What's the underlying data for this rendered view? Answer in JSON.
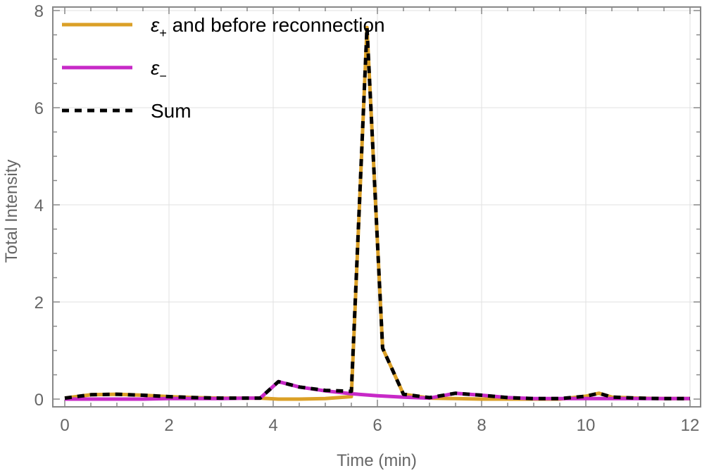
{
  "chart_data": {
    "type": "line",
    "title": "",
    "xlabel": "Time (min)",
    "ylabel": "Total Intensity",
    "xlim": [
      -0.2,
      12.2
    ],
    "ylim": [
      -0.15,
      8.1
    ],
    "xticks": [
      0,
      2,
      4,
      6,
      8,
      10,
      12
    ],
    "yticks": [
      0,
      2,
      4,
      6,
      8
    ],
    "grid": true,
    "legend_position": "top-left",
    "series": [
      {
        "name": "ε+ and before reconnection",
        "color": "#DBA027",
        "style": "solid",
        "x": [
          0,
          0.5,
          1,
          1.5,
          2,
          2.5,
          3,
          3.5,
          3.75,
          4.1,
          4.5,
          5,
          5.5,
          5.8,
          6.1,
          6.5,
          7,
          7.5,
          8,
          8.5,
          9,
          9.5,
          10,
          10.25,
          10.5,
          11,
          11.5,
          12
        ],
        "values": [
          0.02,
          0.09,
          0.1,
          0.08,
          0.05,
          0.03,
          0.02,
          0.02,
          0.02,
          0.0,
          0.0,
          0.01,
          0.05,
          7.65,
          1.05,
          0.1,
          0.02,
          0.01,
          0.0,
          0.0,
          0.0,
          0.0,
          0.06,
          0.12,
          0.04,
          0.02,
          0.01,
          0.01
        ]
      },
      {
        "name": "ε−",
        "color": "#C729C7",
        "style": "solid",
        "x": [
          0,
          0.5,
          1,
          1.5,
          2,
          2.5,
          3,
          3.5,
          3.75,
          4.1,
          4.5,
          5,
          5.5,
          6,
          6.5,
          7,
          7.5,
          8,
          8.5,
          9,
          9.5,
          10,
          10.5,
          11,
          11.5,
          12
        ],
        "values": [
          0.0,
          0.0,
          0.0,
          0.0,
          0.01,
          0.01,
          0.01,
          0.02,
          0.02,
          0.36,
          0.25,
          0.17,
          0.11,
          0.07,
          0.04,
          0.02,
          0.12,
          0.08,
          0.03,
          0.01,
          0.01,
          0.01,
          0.01,
          0.01,
          0.01,
          0.01
        ]
      },
      {
        "name": "Sum",
        "color": "#000000",
        "style": "dashed",
        "x": [
          0,
          0.5,
          1,
          1.5,
          2,
          2.5,
          3,
          3.5,
          3.75,
          4.1,
          4.5,
          5,
          5.5,
          5.8,
          6.1,
          6.5,
          7,
          7.5,
          8,
          8.5,
          9,
          9.5,
          10,
          10.25,
          10.5,
          11,
          11.5,
          12
        ],
        "values": [
          0.02,
          0.09,
          0.1,
          0.08,
          0.05,
          0.03,
          0.02,
          0.02,
          0.02,
          0.36,
          0.25,
          0.18,
          0.16,
          7.65,
          1.05,
          0.1,
          0.03,
          0.12,
          0.08,
          0.03,
          0.01,
          0.01,
          0.06,
          0.12,
          0.04,
          0.02,
          0.01,
          0.01
        ]
      }
    ]
  },
  "legend": {
    "items": [
      {
        "label": "ε",
        "sub": "+",
        "rest": " and before reconnection"
      },
      {
        "label": "ε",
        "sub": "−",
        "rest": ""
      },
      {
        "label": "Sum",
        "sub": "",
        "rest": ""
      }
    ]
  },
  "axes": {
    "xlabel": "Time (min)",
    "ylabel": "Total Intensity",
    "xtick_labels": [
      "0",
      "2",
      "4",
      "6",
      "8",
      "10",
      "12"
    ],
    "ytick_labels": [
      "0",
      "2",
      "4",
      "6",
      "8"
    ]
  }
}
